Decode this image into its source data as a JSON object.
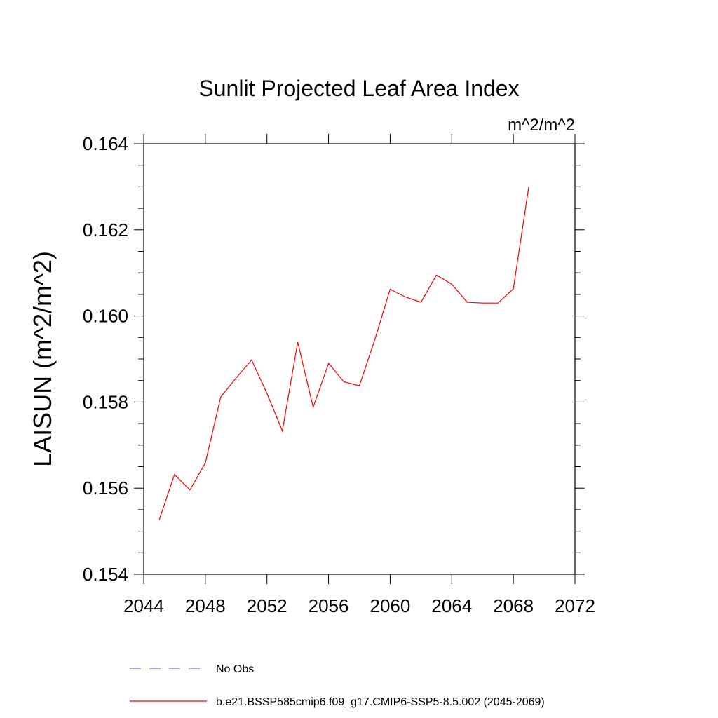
{
  "chart_data": {
    "type": "line",
    "title": "Sunlit Projected Leaf Area Index",
    "units_label": "m^2/m^2",
    "ylabel": "LAISUN  (m^2/m^2)",
    "xlabel": "",
    "xlim": [
      2044,
      2072
    ],
    "ylim": [
      0.154,
      0.164
    ],
    "x_ticks": [
      2044,
      2048,
      2052,
      2056,
      2060,
      2064,
      2068,
      2072
    ],
    "x_tick_labels": [
      "2044",
      "2048",
      "2052",
      "2056",
      "2060",
      "2064",
      "2068",
      "2072"
    ],
    "y_ticks": [
      0.154,
      0.156,
      0.158,
      0.16,
      0.162,
      0.164
    ],
    "y_tick_labels": [
      "0.154",
      "0.156",
      "0.158",
      "0.160",
      "0.162",
      "0.164"
    ],
    "grid": false,
    "legend_position": "bottom",
    "series": [
      {
        "name": "No Obs",
        "color": "#6a6ad0",
        "style": "dashed",
        "x": [],
        "values": []
      },
      {
        "name": "b.e21.BSSP585cmip6.f09_g17.CMIP6-SSP5-8.5.002 (2045-2069)",
        "color": "#ff0000",
        "style": "solid",
        "x": [
          2045,
          2046,
          2047,
          2048,
          2049,
          2050,
          2051,
          2052,
          2053,
          2054,
          2055,
          2056,
          2057,
          2058,
          2059,
          2060,
          2061,
          2062,
          2063,
          2064,
          2065,
          2066,
          2067,
          2068,
          2069
        ],
        "values": [
          0.15526,
          0.15632,
          0.15596,
          0.15659,
          0.15812,
          0.15856,
          0.15898,
          0.1582,
          0.15733,
          0.15939,
          0.15788,
          0.1589,
          0.15847,
          0.15838,
          0.15945,
          0.16062,
          0.16044,
          0.16032,
          0.16095,
          0.16074,
          0.16032,
          0.1603,
          0.1603,
          0.16063,
          0.163
        ]
      }
    ]
  }
}
